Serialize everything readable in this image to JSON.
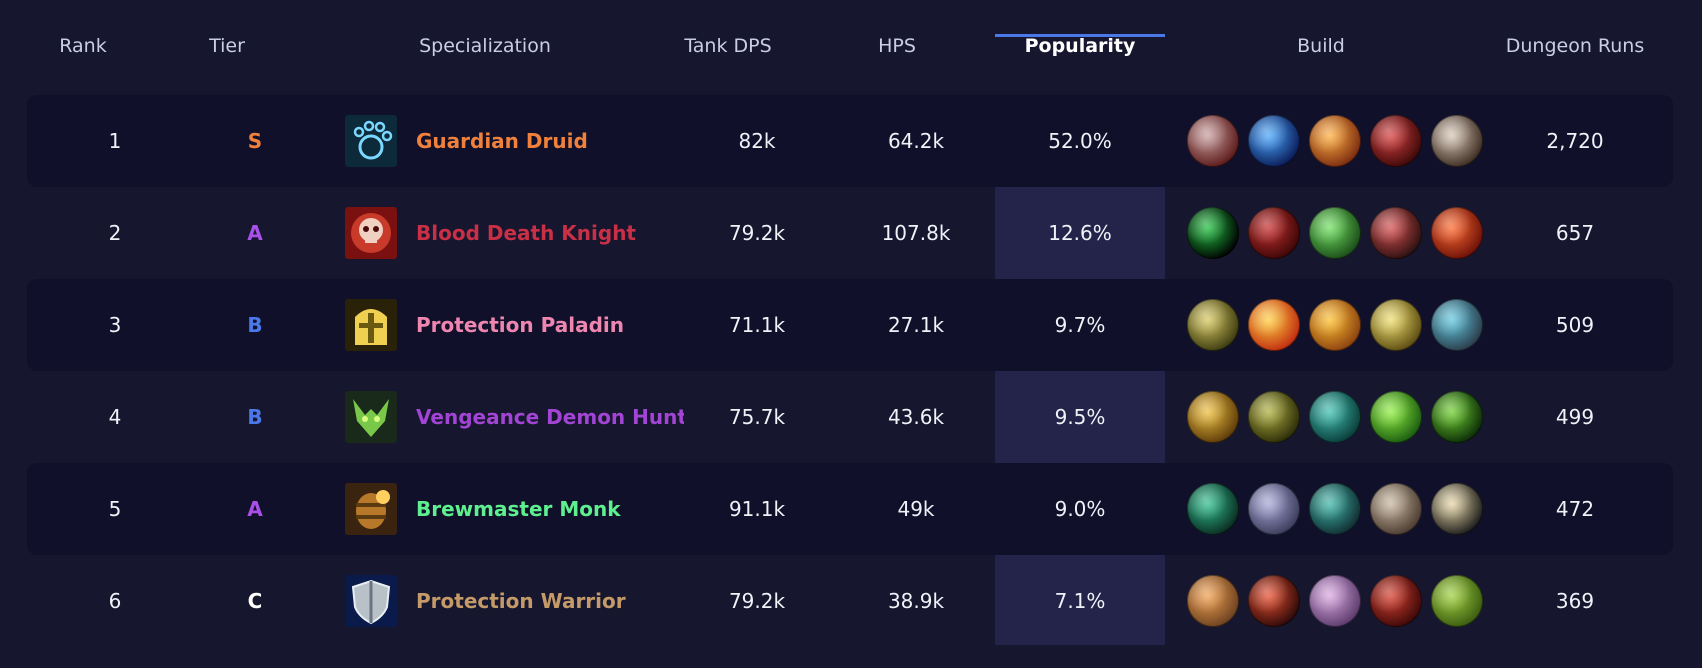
{
  "columns": {
    "rank": "Rank",
    "tier": "Tier",
    "specialization": "Specialization",
    "tank_dps": "Tank DPS",
    "hps": "HPS",
    "popularity": "Popularity",
    "build": "Build",
    "dungeon_runs": "Dungeon Runs"
  },
  "rows": [
    {
      "rank": "1",
      "tier": "S",
      "tier_color": "#f0813c",
      "spec": "Guardian Druid",
      "spec_color": "#f0813c",
      "spec_icon": "bear-paw-icon",
      "tank_dps": "82k",
      "hps": "64.2k",
      "popularity": "52.0%",
      "dungeon_runs": "2,720",
      "build": [
        {
          "icon": "claw-slash-icon",
          "c1": "#c9a0a0",
          "c2": "#5a1818"
        },
        {
          "icon": "blue-beam-icon",
          "c1": "#4aa8ff",
          "c2": "#0a1a55"
        },
        {
          "icon": "fire-charge-icon",
          "c1": "#ffb040",
          "c2": "#7a2a10"
        },
        {
          "icon": "wolf-head-icon",
          "c1": "#d84040",
          "c2": "#3a0808"
        },
        {
          "icon": "talon-icon",
          "c1": "#d8c8b8",
          "c2": "#3a2a20"
        }
      ]
    },
    {
      "rank": "2",
      "tier": "A",
      "tier_color": "#a950e8",
      "spec": "Blood Death Knight",
      "spec_color": "#c92f45",
      "spec_icon": "blood-skull-icon",
      "tank_dps": "79.2k",
      "hps": "107.8k",
      "popularity": "12.6%",
      "dungeon_runs": "657",
      "build": [
        {
          "icon": "void-portal-icon",
          "c1": "#20c040",
          "c2": "#000000"
        },
        {
          "icon": "blood-orb-icon",
          "c1": "#c83030",
          "c2": "#3a0606"
        },
        {
          "icon": "green-skull-icon",
          "c1": "#70e060",
          "c2": "#1a4a18"
        },
        {
          "icon": "blood-blade-icon",
          "c1": "#d85050",
          "c2": "#2a1010"
        },
        {
          "icon": "heart-flame-icon",
          "c1": "#ff6a30",
          "c2": "#6a1008"
        }
      ]
    },
    {
      "rank": "3",
      "tier": "B",
      "tier_color": "#4a78e8",
      "spec": "Protection Paladin",
      "spec_color": "#ef86b0",
      "spec_icon": "golden-helm-icon",
      "tank_dps": "71.1k",
      "hps": "27.1k",
      "popularity": "9.7%",
      "dungeon_runs": "509",
      "build": [
        {
          "icon": "lion-icon",
          "c1": "#d8c860",
          "c2": "#3a3a10"
        },
        {
          "icon": "holy-pillar-icon",
          "c1": "#ffd040",
          "c2": "#c02a10"
        },
        {
          "icon": "holy-burst-icon",
          "c1": "#ffc030",
          "c2": "#8a4010"
        },
        {
          "icon": "helm-icon",
          "c1": "#f0e070",
          "c2": "#5a4a10"
        },
        {
          "icon": "shield-rune-icon",
          "c1": "#60c8e0",
          "c2": "#2a3a48"
        }
      ]
    },
    {
      "rank": "4",
      "tier": "B",
      "tier_color": "#4a78e8",
      "spec": "Vengeance Demon Hunter",
      "spec_color": "#a244d4",
      "spec_icon": "demon-horns-icon",
      "tank_dps": "75.7k",
      "hps": "43.6k",
      "popularity": "9.5%",
      "dungeon_runs": "499",
      "build": [
        {
          "icon": "golden-sigil-icon",
          "c1": "#f0c040",
          "c2": "#5a3a08"
        },
        {
          "icon": "demon-mask-icon",
          "c1": "#b0b040",
          "c2": "#2a2a08"
        },
        {
          "icon": "spectral-wings-icon",
          "c1": "#40c0b0",
          "c2": "#0a3a38"
        },
        {
          "icon": "fel-spiral-icon",
          "c1": "#90f040",
          "c2": "#1a5a10"
        },
        {
          "icon": "fel-demon-icon",
          "c1": "#70d030",
          "c2": "#0a2a08"
        }
      ]
    },
    {
      "rank": "5",
      "tier": "A",
      "tier_color": "#a950e8",
      "spec": "Brewmaster Monk",
      "spec_color": "#5ef08e",
      "spec_icon": "brew-keg-icon",
      "tank_dps": "91.1k",
      "hps": "49k",
      "popularity": "9.0%",
      "dungeon_runs": "472",
      "build": [
        {
          "icon": "jade-swirl-icon",
          "c1": "#30c090",
          "c2": "#0a2a20"
        },
        {
          "icon": "staff-strike-icon",
          "c1": "#a8a8d8",
          "c2": "#3a3a5a"
        },
        {
          "icon": "jade-serpent-icon",
          "c1": "#40b8a8",
          "c2": "#102a30"
        },
        {
          "icon": "stone-mask-icon",
          "c1": "#c8b8a0",
          "c2": "#4a3a30"
        },
        {
          "icon": "panda-face-icon",
          "c1": "#e8d8a8",
          "c2": "#1a1a1a"
        }
      ]
    },
    {
      "rank": "6",
      "tier": "C",
      "tier_color": "#ffffff",
      "spec": "Protection Warrior",
      "spec_color": "#c49a68",
      "spec_icon": "warrior-shield-icon",
      "tank_dps": "79.2k",
      "hps": "38.9k",
      "popularity": "7.1%",
      "dungeon_runs": "369",
      "build": [
        {
          "icon": "round-shield-icon",
          "c1": "#f0a050",
          "c2": "#6a4020"
        },
        {
          "icon": "shatter-icon",
          "c1": "#e85030",
          "c2": "#2a0808"
        },
        {
          "icon": "banshee-icon",
          "c1": "#d8a8e0",
          "c2": "#5a3a6a"
        },
        {
          "icon": "rage-demon-icon",
          "c1": "#d84030",
          "c2": "#3a0808"
        },
        {
          "icon": "ogre-icon",
          "c1": "#a0d040",
          "c2": "#3a5a10"
        }
      ]
    }
  ]
}
